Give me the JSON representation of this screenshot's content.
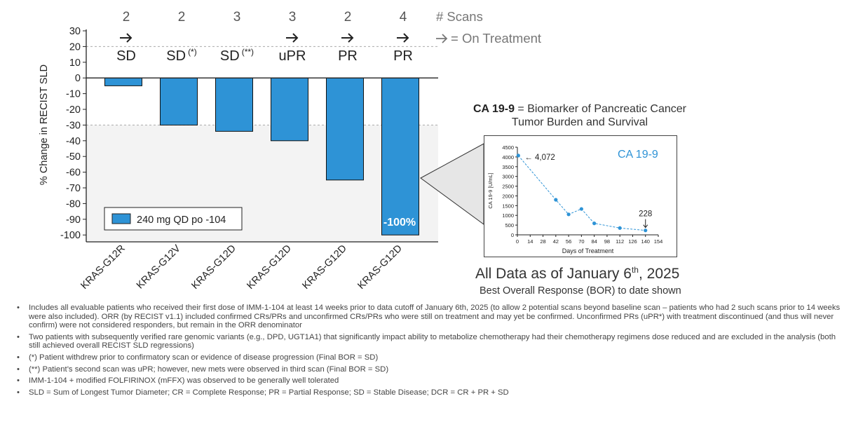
{
  "chart_data": {
    "type": "bar",
    "title": "",
    "ylabel": "% Change in RECIST SLD",
    "ylim": [
      -100,
      30
    ],
    "yticks": [
      30,
      20,
      10,
      0,
      -10,
      -20,
      -30,
      -40,
      -50,
      -60,
      -70,
      -80,
      -90,
      -100
    ],
    "categories": [
      "KRAS-G12R",
      "KRAS-G12V",
      "KRAS-G12D",
      "KRAS-G12D",
      "KRAS-G12D",
      "KRAS-G12D"
    ],
    "values": [
      -5,
      -30,
      -34,
      -40,
      -65,
      -100
    ],
    "scans": [
      "2",
      "2",
      "3",
      "3",
      "2",
      "4"
    ],
    "on_treatment": [
      true,
      false,
      false,
      true,
      true,
      true
    ],
    "responses": [
      "SD",
      "SD",
      "SD",
      "uPR",
      "PR",
      "PR"
    ],
    "response_marks": [
      "",
      "(*)",
      "(**)",
      "",
      "",
      ""
    ],
    "bar_label": "-100%",
    "bar_color": "#2e93d6",
    "legend": "240 mg QD po -104",
    "scans_header": "# Scans",
    "treatment_key": "= On Treatment",
    "inset": {
      "type": "line",
      "title": "CA 19-9",
      "xlabel": "Days of Treatment",
      "ylabel": "CA 19-9 [U/mL]",
      "x": [
        1,
        42,
        56,
        70,
        84,
        112,
        140
      ],
      "y": [
        4072,
        1800,
        1050,
        1330,
        590,
        350,
        228
      ],
      "xticks": [
        0,
        14,
        28,
        42,
        56,
        70,
        84,
        98,
        112,
        126,
        140,
        154
      ],
      "yticks": [
        0,
        500,
        1000,
        1500,
        2000,
        2500,
        3000,
        3500,
        4000,
        4500
      ],
      "xlim": [
        0,
        154
      ],
      "ylim": [
        0,
        4500
      ],
      "start_label": "← 4,072",
      "end_label": "228",
      "color": "#2e93d6"
    }
  },
  "inset_heading": {
    "bold": "CA 19-9",
    "rest": " = Biomarker of Pancreatic Cancer Tumor Burden and Survival"
  },
  "as_of": {
    "prefix": "All Data as of January 6",
    "sup": "th",
    "suffix": ", 2025"
  },
  "bor_note": "Best Overall Response (BOR) to date shown",
  "footnotes": [
    "Includes all evaluable patients who received their first dose of IMM-1-104 at least 14 weeks prior to data cutoff of January 6th, 2025 (to allow 2 potential scans beyond baseline scan – patients who had 2 such scans prior to 14 weeks were also included). ORR (by RECIST v1.1) included confirmed CRs/PRs and unconfirmed CRs/PRs who were still on treatment and may yet be confirmed. Unconfirmed PRs (uPR*) with treatment discontinued (and thus will never confirm) were not considered responders, but remain in the ORR denominator",
    "Two patients with subsequently verified rare genomic variants (e.g., DPD, UGT1A1) that significantly impact ability to metabolize chemotherapy had their chemotherapy regimens dose reduced and are excluded in the analysis (both still achieved overall RECIST SLD regressions)",
    "(*) Patient withdrew prior to confirmatory scan or evidence of disease progression (Final BOR = SD)",
    "(**) Patient’s second scan was uPR; however, new mets were observed in third scan (Final BOR = SD)",
    "IMM-1-104 + modified FOLFIRINOX (mFFX) was observed to be generally well tolerated",
    "SLD = Sum of Longest Tumor Diameter; CR = Complete Response; PR = Partial Response; SD = Stable Disease; DCR = CR + PR + SD"
  ]
}
